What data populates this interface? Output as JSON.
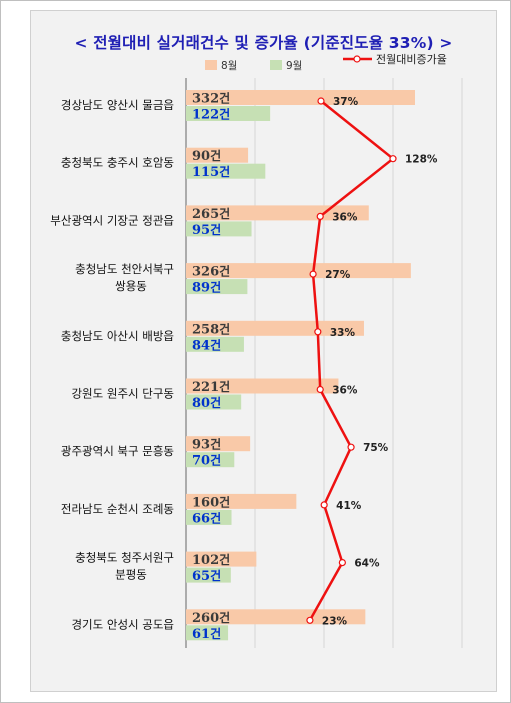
{
  "chart_data": {
    "type": "bar",
    "orientation": "horizontal",
    "title": "< 전월대비 실거래건수 및 증가율 (기준진도율 33%) >",
    "legend_placement": "top",
    "count_suffix": "건",
    "categories": [
      [
        "경상남도 양산시 물금읍"
      ],
      [
        "충청북도 충주시 호암동"
      ],
      [
        "부산광역시 기장군 정관읍"
      ],
      [
        "충청남도 천안서북구",
        "쌍용동"
      ],
      [
        "충청남도 아산시 배방읍"
      ],
      [
        "강원도 원주시 단구동"
      ],
      [
        "광주광역시 북구 문흥동"
      ],
      [
        "전라남도 순천시 조례동"
      ],
      [
        "충청북도 청주서원구",
        "분평동"
      ],
      [
        "경기도 안성시 공도읍"
      ]
    ],
    "series": [
      {
        "name": "8월",
        "type": "bar",
        "color": "#f9c9a8",
        "values": [
          332,
          90,
          265,
          326,
          258,
          221,
          93,
          160,
          102,
          260
        ]
      },
      {
        "name": "9월",
        "type": "bar",
        "color": "#c6e0b4",
        "values": [
          122,
          115,
          95,
          89,
          84,
          80,
          70,
          66,
          65,
          61
        ]
      },
      {
        "name": "전월대비증가율",
        "type": "line",
        "color": "#ee1111",
        "values": [
          37,
          128,
          36,
          27,
          33,
          36,
          75,
          41,
          64,
          23
        ],
        "unit": "%"
      }
    ],
    "bar_axis_max": 380,
    "rate_axis_range": [
      -10,
      140
    ],
    "colors": {
      "title": "#1f1fb4",
      "sep_label": "#0033cc",
      "aug_label": "#3a3a3a"
    }
  }
}
